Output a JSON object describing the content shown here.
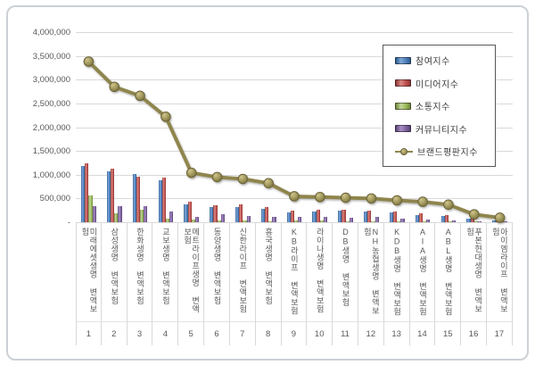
{
  "window": {
    "background": "#ffffff",
    "card_border_color": "#ccd1d6"
  },
  "chart_data": {
    "type": "bar",
    "subtype": "clustered-bars-with-line-overlay",
    "title": "",
    "categories": [
      "미래에셋생명 변액보험",
      "삼성생명 변액보험",
      "한화생명 변액보험",
      "교보생명 변액보험",
      "메트라이프생명 변액보험",
      "동양생명 변액보험",
      "신한라이프 변액보험",
      "흥국생명 변액보험",
      "KB라이프 변액보험",
      "라이나생명 변액보험",
      "DB생명 변액보험",
      "NH농협생명 변액보험",
      "KDB생명 변액보험",
      "AIA생명 변액보험",
      "ABL생명 변액보험",
      "푸본현대생명 변액보험",
      "아이엠라이프 변액보험"
    ],
    "ranks": [
      "1",
      "2",
      "3",
      "4",
      "5",
      "6",
      "7",
      "8",
      "9",
      "10",
      "11",
      "12",
      "13",
      "14",
      "15",
      "16",
      "17"
    ],
    "series": [
      {
        "name": "참여지수",
        "color": "#4F81BD",
        "values": [
          1190000,
          1075000,
          1015000,
          875000,
          370000,
          325000,
          315000,
          285000,
          200000,
          230000,
          245000,
          220000,
          200000,
          155000,
          135000,
          75000,
          35000
        ]
      },
      {
        "name": "미디어지수",
        "color": "#C0504D",
        "values": [
          1240000,
          1130000,
          955000,
          935000,
          430000,
          355000,
          375000,
          315000,
          245000,
          260000,
          265000,
          250000,
          220000,
          180000,
          155000,
          90000,
          45000
        ]
      },
      {
        "name": "소통지수",
        "color": "#9BBB59",
        "values": [
          560000,
          185000,
          265000,
          70000,
          55000,
          45000,
          35000,
          25000,
          30000,
          30000,
          15000,
          15000,
          15000,
          10000,
          10000,
          8000,
          5000
        ]
      },
      {
        "name": "커뮤니티지수",
        "color": "#8064A2",
        "values": [
          345000,
          345000,
          340000,
          230000,
          120000,
          170000,
          135000,
          105000,
          115000,
          105000,
          95000,
          105000,
          75000,
          55000,
          45000,
          20000,
          15000
        ]
      }
    ],
    "line_series": {
      "name": "브랜드평판지수",
      "color": "#8F854E",
      "values": [
        3380000,
        2850000,
        2660000,
        2220000,
        1040000,
        950000,
        910000,
        820000,
        545000,
        530000,
        515000,
        500000,
        460000,
        430000,
        370000,
        165000,
        95000
      ]
    },
    "y_axis": {
      "min": 0,
      "max": 4000000,
      "step": 500000,
      "tick_labels_top_to_bottom": [
        "4,000,000",
        "3,500,000",
        "3,000,000",
        "2,500,000",
        "2,000,000",
        "1,500,000",
        "1,000,000",
        "500,000",
        "-"
      ]
    },
    "x_axis": {
      "levels": [
        "company-name",
        "rank-number"
      ]
    },
    "grid": true,
    "gridline_color": "#d9d9d9",
    "axis_text_color": "#595959",
    "legend_position": "top-right"
  }
}
